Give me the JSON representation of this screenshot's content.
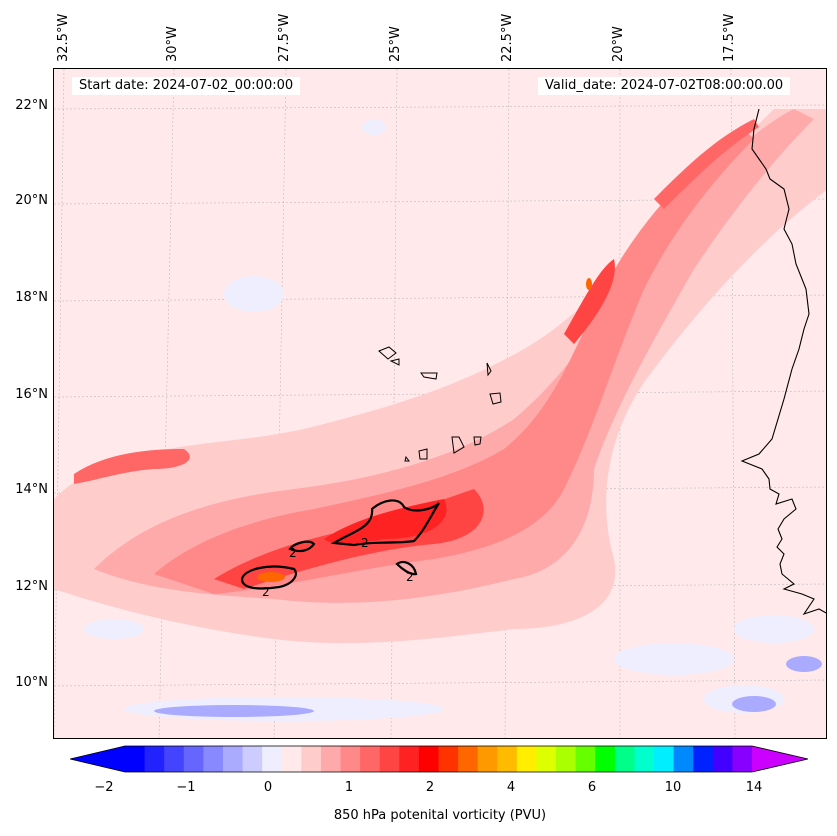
{
  "map": {
    "start_date": "Start date: 2024-07-02_00:00:00",
    "valid_date": "Valid_date: 2024-07-02T08:00:00.00",
    "lon_labels": [
      "32.5°W",
      "30°W",
      "27.5°W",
      "25°W",
      "22.5°W",
      "20°W",
      "17.5°W"
    ],
    "lat_labels": [
      "22°N",
      "20°N",
      "18°N",
      "16°N",
      "14°N",
      "12°N",
      "10°N"
    ],
    "contour_label": "2",
    "background_color": "#ffe9ea"
  },
  "colorbar": {
    "label": "850 hPa potenital vorticity (PVU)",
    "ticks": [
      "−2",
      "−1",
      "0",
      "1",
      "2",
      "4",
      "6",
      "10",
      "14"
    ],
    "colors": [
      "#0000ff",
      "#2222ff",
      "#4444ff",
      "#6666ff",
      "#8888ff",
      "#aaaaff",
      "#ccccff",
      "#eeeeff",
      "#ffe9ea",
      "#ffcccc",
      "#ffaaaa",
      "#ff8888",
      "#ff6666",
      "#ff4444",
      "#ff2222",
      "#ff0000",
      "#ff3300",
      "#ff6600",
      "#ff9900",
      "#ffbb00",
      "#ffee00",
      "#ddff00",
      "#aaff00",
      "#66ff00",
      "#00ff00",
      "#00ff88",
      "#00ffcc",
      "#00eeff",
      "#0088ff",
      "#0022ff",
      "#4400ff",
      "#8800ff"
    ],
    "extend_low_color": "#0000ff",
    "extend_high_color": "#cc00ff"
  }
}
